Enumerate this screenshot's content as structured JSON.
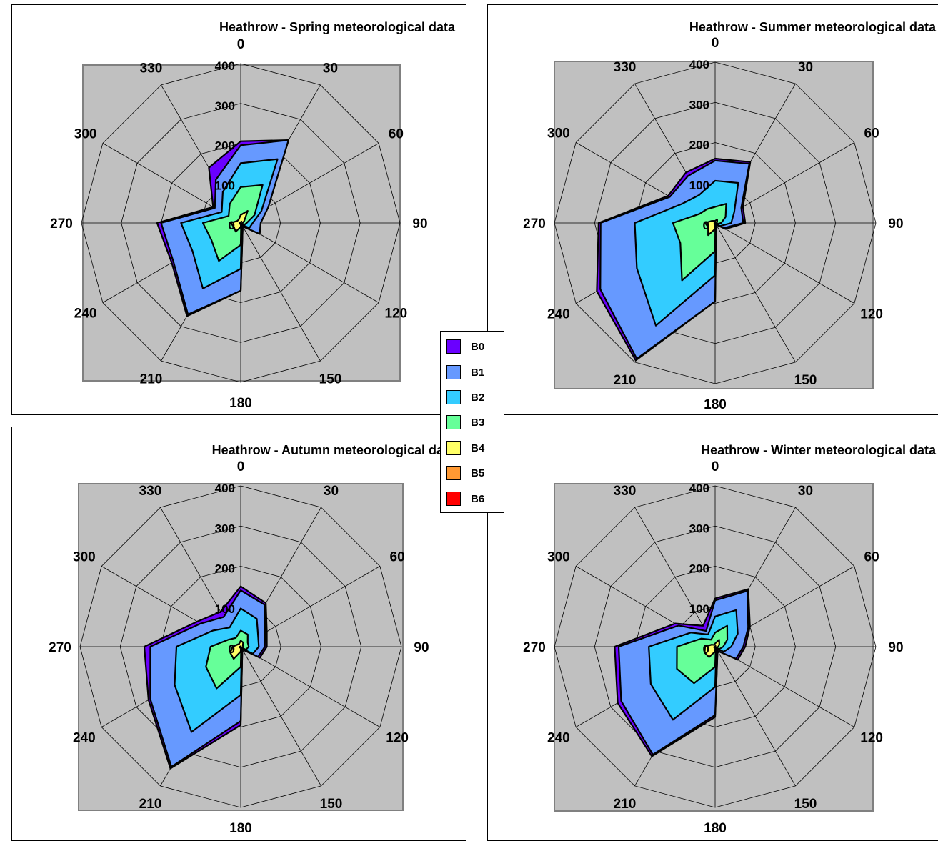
{
  "legend": {
    "items": [
      {
        "label": "B0",
        "color": "#6a00ff"
      },
      {
        "label": "B1",
        "color": "#6699ff"
      },
      {
        "label": "B2",
        "color": "#33ccff"
      },
      {
        "label": "B3",
        "color": "#66ff99"
      },
      {
        "label": "B4",
        "color": "#ffff66"
      },
      {
        "label": "B5",
        "color": "#ff9933"
      },
      {
        "label": "B6",
        "color": "#ff0000"
      }
    ]
  },
  "chart_data": [
    {
      "type": "radar-area",
      "title": "Heathrow - Spring meteorological data",
      "categories": [
        "0",
        "30",
        "60",
        "90",
        "120",
        "150",
        "180",
        "210",
        "240",
        "270",
        "300",
        "330"
      ],
      "rlim": [
        0,
        400
      ],
      "rticks": [
        "0",
        "100",
        "200",
        "300",
        "400"
      ],
      "series": [
        {
          "name": "B0",
          "values": [
            205,
            240,
            80,
            50,
            55,
            10,
            170,
            270,
            200,
            210,
            80,
            160
          ]
        },
        {
          "name": "B1",
          "values": [
            195,
            240,
            80,
            50,
            55,
            10,
            170,
            265,
            195,
            200,
            75,
            125
          ]
        },
        {
          "name": "B2",
          "values": [
            150,
            185,
            60,
            30,
            25,
            5,
            115,
            190,
            140,
            150,
            55,
            90
          ]
        },
        {
          "name": "B3",
          "values": [
            90,
            110,
            40,
            15,
            10,
            2,
            55,
            110,
            85,
            95,
            35,
            55
          ]
        },
        {
          "name": "B4",
          "values": [
            20,
            35,
            10,
            5,
            5,
            1,
            10,
            25,
            20,
            25,
            10,
            10
          ]
        },
        {
          "name": "B5",
          "values": [
            2,
            4,
            1,
            1,
            1,
            0,
            1,
            3,
            2,
            3,
            1,
            1
          ]
        },
        {
          "name": "B6",
          "values": [
            0,
            0,
            0,
            0,
            0,
            0,
            0,
            0,
            0,
            0,
            0,
            0
          ]
        }
      ]
    },
    {
      "type": "radar-area",
      "title": "Heathrow - Summer meteorological data",
      "categories": [
        "0",
        "30",
        "60",
        "90",
        "120",
        "150",
        "180",
        "210",
        "240",
        "270",
        "300",
        "330"
      ],
      "rlim": [
        0,
        400
      ],
      "rticks": [
        "0",
        "100",
        "200",
        "300",
        "400"
      ],
      "series": [
        {
          "name": "B0",
          "values": [
            160,
            175,
            80,
            75,
            30,
            5,
            195,
            395,
            340,
            290,
            135,
            145
          ]
        },
        {
          "name": "B1",
          "values": [
            155,
            170,
            75,
            70,
            25,
            5,
            195,
            390,
            330,
            285,
            130,
            135
          ]
        },
        {
          "name": "B2",
          "values": [
            105,
            115,
            55,
            40,
            15,
            3,
            130,
            295,
            225,
            200,
            95,
            80
          ]
        },
        {
          "name": "B3",
          "values": [
            40,
            55,
            30,
            15,
            5,
            1,
            70,
            165,
            100,
            105,
            45,
            40
          ]
        },
        {
          "name": "B4",
          "values": [
            5,
            10,
            6,
            4,
            2,
            0,
            15,
            35,
            20,
            25,
            10,
            6
          ]
        },
        {
          "name": "B5",
          "values": [
            0,
            1,
            1,
            0,
            0,
            0,
            1,
            3,
            2,
            2,
            1,
            0
          ]
        },
        {
          "name": "B6",
          "values": [
            0,
            0,
            0,
            0,
            0,
            0,
            0,
            0,
            0,
            0,
            0,
            0
          ]
        }
      ]
    },
    {
      "type": "radar-area",
      "title": "Heathrow - Autumn meteorological data",
      "categories": [
        "0",
        "30",
        "60",
        "90",
        "120",
        "150",
        "180",
        "210",
        "240",
        "270",
        "300",
        "330"
      ],
      "rlim": [
        0,
        400
      ],
      "rticks": [
        "0",
        "100",
        "200",
        "300",
        "400"
      ],
      "series": [
        {
          "name": "B0",
          "values": [
            150,
            125,
            75,
            65,
            55,
            8,
            195,
            350,
            265,
            240,
            125,
            100
          ]
        },
        {
          "name": "B1",
          "values": [
            140,
            120,
            70,
            60,
            50,
            8,
            185,
            345,
            260,
            225,
            115,
            85
          ]
        },
        {
          "name": "B2",
          "values": [
            95,
            80,
            50,
            45,
            35,
            5,
            120,
            245,
            190,
            160,
            80,
            55
          ]
        },
        {
          "name": "B3",
          "values": [
            40,
            35,
            20,
            20,
            15,
            2,
            50,
            120,
            100,
            75,
            35,
            25
          ]
        },
        {
          "name": "B4",
          "values": [
            15,
            12,
            6,
            6,
            6,
            1,
            12,
            35,
            30,
            20,
            10,
            8
          ]
        },
        {
          "name": "B5",
          "values": [
            1,
            1,
            0,
            0,
            0,
            0,
            1,
            3,
            3,
            2,
            1,
            1
          ]
        },
        {
          "name": "B6",
          "values": [
            0,
            0,
            0,
            0,
            0,
            0,
            0,
            0,
            0,
            0,
            0,
            0
          ]
        }
      ]
    },
    {
      "type": "radar-area",
      "title": "Heathrow - Winter meteorological data",
      "categories": [
        "0",
        "30",
        "60",
        "90",
        "120",
        "150",
        "180",
        "210",
        "240",
        "270",
        "300",
        "330"
      ],
      "rlim": [
        0,
        400
      ],
      "rticks": [
        "0",
        "100",
        "200",
        "300",
        "400"
      ],
      "series": [
        {
          "name": "B0",
          "values": [
            120,
            165,
            100,
            75,
            65,
            12,
            175,
            315,
            280,
            250,
            115,
            60
          ]
        },
        {
          "name": "B1",
          "values": [
            115,
            160,
            95,
            70,
            60,
            12,
            170,
            310,
            270,
            240,
            105,
            45
          ]
        },
        {
          "name": "B2",
          "values": [
            75,
            105,
            65,
            40,
            25,
            6,
            100,
            210,
            185,
            165,
            70,
            35
          ]
        },
        {
          "name": "B3",
          "values": [
            35,
            60,
            35,
            20,
            12,
            3,
            50,
            105,
            110,
            95,
            40,
            20
          ]
        },
        {
          "name": "B4",
          "values": [
            8,
            20,
            12,
            8,
            4,
            1,
            12,
            30,
            30,
            25,
            10,
            5
          ]
        },
        {
          "name": "B5",
          "values": [
            1,
            2,
            1,
            1,
            0,
            0,
            1,
            3,
            3,
            2,
            1,
            0
          ]
        },
        {
          "name": "B6",
          "values": [
            0,
            0,
            0,
            0,
            0,
            0,
            0,
            0,
            0,
            0,
            0,
            0
          ]
        }
      ]
    }
  ]
}
